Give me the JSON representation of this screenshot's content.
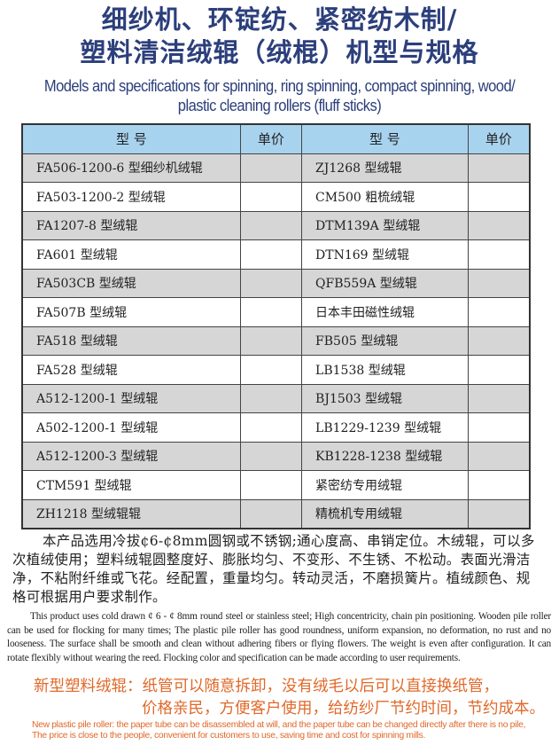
{
  "title": {
    "line1": "细纱机、环锭纺、紧密纺木制/",
    "line2": "塑料清洁绒辊（绒棍）机型与规格",
    "en_line1": "Models and specifications for spinning, ring spinning, compact spinning, wood/",
    "en_line2": "plastic cleaning rollers (fluff sticks)"
  },
  "table": {
    "headers": [
      "型  号",
      "单价",
      "型  号",
      "单价"
    ],
    "rows": [
      [
        "FA506-1200-6 型细纱机绒辊",
        "",
        "ZJ1268 型绒辊",
        ""
      ],
      [
        "FA503-1200-2 型绒辊",
        "",
        "CM500 粗梳绒辊",
        ""
      ],
      [
        "FA1207-8 型绒辊",
        "",
        "DTM139A 型绒辊",
        ""
      ],
      [
        "FA601 型绒辊",
        "",
        "DTN169 型绒辊",
        ""
      ],
      [
        "FA503CB 型绒辊",
        "",
        "QFB559A 型绒辊",
        ""
      ],
      [
        "FA507B 型绒辊",
        "",
        "日本丰田磁性绒辊",
        ""
      ],
      [
        "FA518 型绒辊",
        "",
        "FB505 型绒辊",
        ""
      ],
      [
        "FA528 型绒辊",
        "",
        "LB1538 型绒辊",
        ""
      ],
      [
        "A512-1200-1 型绒辊",
        "",
        "BJ1503 型绒辊",
        ""
      ],
      [
        "A502-1200-1 型绒辊",
        "",
        "LB1229-1239 型绒辊",
        ""
      ],
      [
        "A512-1200-3 型绒辊",
        "",
        "KB1228-1238 型绒辊",
        ""
      ],
      [
        "CTM591 型绒辊",
        "",
        "紧密纺专用绒辊",
        ""
      ],
      [
        "ZH1218 型绒辊辊",
        "",
        "精梳机专用绒辊",
        ""
      ]
    ],
    "header_color": "#a8d3ef",
    "stripe_color": "#d6d6d6"
  },
  "description": {
    "cn": "本产品选用冷拔¢6-¢8mm圆钢或不锈钢;通心度高、串销定位。木绒辊，可以多次植绒使用；塑料绒辊圆整度好、膨胀均匀、不变形、不生锈、不松动。表面光滑洁净，不粘附纤维或飞花。经配置，重量均匀。转动灵活，不磨损簧片。植绒颜色、规格可根据用户要求制作。",
    "en": "This product uses cold drawn ¢ 6 - ¢ 8mm round steel or stainless steel; High concentricity, chain pin positioning. Wooden pile roller can be used for flocking for many times; The plastic pile roller has good roundness, uniform expansion, no deformation, no rust and no looseness. The surface shall be smooth and clean without adhering fibers or flying flowers. The weight is even after configuration. It can rotate flexibly without wearing the reed. Flocking color and specification can be made according to user requirements."
  },
  "promo": {
    "cn_line1": "新型塑料绒辊：纸管可以随意拆卸，没有绒毛以后可以直接换纸管，",
    "cn_line2": "价格亲民，方便客户使用，给纺纱厂节约时间，节约成本。",
    "en_line1": "New plastic pile roller: the paper tube can be disassembled at will, and the paper tube can be changed directly after there is no pile,",
    "en_line2": "The price is close to the people, convenient for customers to use, saving time and cost for spinning mills.",
    "color": "#e0692a"
  },
  "title_color": "#2c3f7c"
}
